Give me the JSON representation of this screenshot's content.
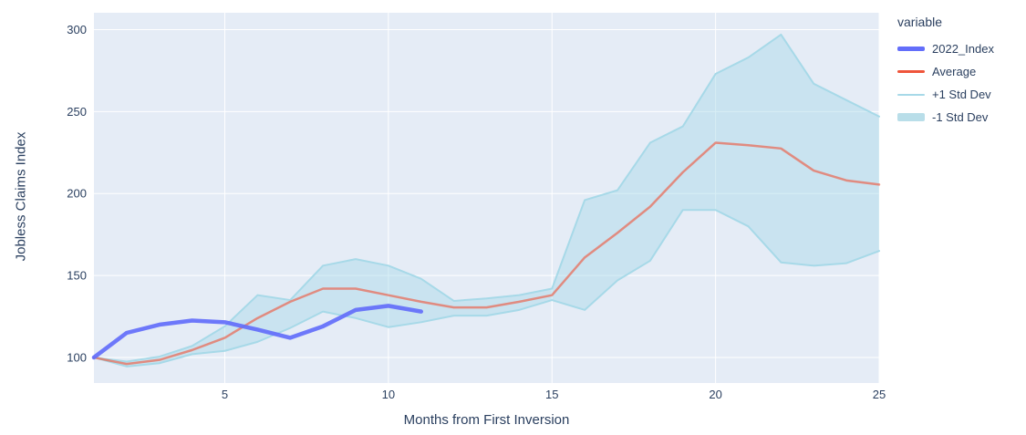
{
  "legend": {
    "title": "variable",
    "items": [
      {
        "label": "2022_Index",
        "color": "#636EFA",
        "swatch_height": 5
      },
      {
        "label": "Average",
        "color": "#EF553B",
        "swatch_height": 3
      },
      {
        "label": "+1 Std Dev",
        "color": "#A7D9E8",
        "swatch_height": 2
      },
      {
        "label": "-1 Std Dev",
        "color": "#B9DEE9",
        "swatch_height": 9
      }
    ]
  },
  "chart_data": {
    "type": "line",
    "title": "",
    "xlabel": "Months from First Inversion",
    "ylabel": "Jobless Claims Index",
    "xlim": [
      1,
      25
    ],
    "ylim": [
      84.4,
      310.3
    ],
    "xticks": [
      5,
      10,
      15,
      20,
      25
    ],
    "yticks": [
      100,
      150,
      200,
      250,
      300
    ],
    "grid": true,
    "legend_position": "right",
    "plot_bg": "#E5ECF6",
    "grid_color": "#FFFFFF",
    "font_color": "#2A3F5F",
    "x": [
      1,
      2,
      3,
      4,
      5,
      6,
      7,
      8,
      9,
      10,
      11,
      12,
      13,
      14,
      15,
      16,
      17,
      18,
      19,
      20,
      21,
      22,
      23,
      24,
      25
    ],
    "series": [
      {
        "name": "+1 Std Dev",
        "color": "#A7D9E8",
        "width": 2,
        "opacity": 1,
        "values": [
          100,
          97.5,
          100.5,
          107,
          119,
          138,
          135,
          156,
          160,
          156,
          148,
          134.5,
          136,
          138,
          142,
          196,
          202,
          231,
          241,
          273,
          283,
          297,
          267,
          257,
          247
        ]
      },
      {
        "name": "-1 Std Dev",
        "color": "#A7D9E8",
        "width": 2,
        "opacity": 1,
        "fill_between": "+1 Std Dev",
        "fill_color": "rgba(167,217,232,0.45)",
        "values": [
          100,
          94.5,
          96.5,
          102,
          104,
          109.5,
          118,
          128,
          124,
          118.5,
          121.5,
          125.5,
          125.5,
          129,
          135,
          129,
          147,
          159,
          190,
          190,
          180,
          158,
          156,
          157.5,
          165
        ]
      },
      {
        "name": "Average",
        "color": "#EF553B",
        "width": 2.5,
        "opacity": 0.62,
        "values": [
          100,
          96,
          98.5,
          104.5,
          112,
          124,
          134,
          142,
          142,
          138,
          134,
          130.5,
          130.5,
          134,
          138,
          161,
          176,
          192,
          213,
          231,
          229.5,
          227.5,
          214,
          208,
          205.5
        ]
      },
      {
        "name": "2022_Index",
        "color": "#636EFA",
        "width": 4.5,
        "opacity": 0.92,
        "values": [
          100,
          115,
          120,
          122.5,
          121.5,
          117,
          112,
          119,
          129,
          131.5,
          128
        ]
      }
    ]
  }
}
